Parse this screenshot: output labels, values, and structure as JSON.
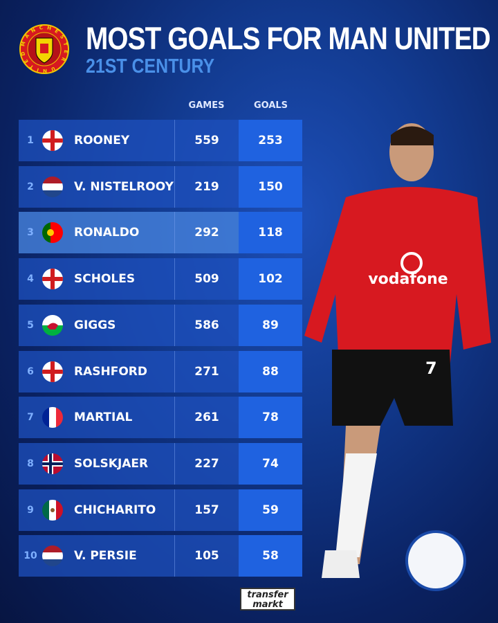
{
  "header": {
    "title": "MOST GOALS FOR MAN UNITED",
    "subtitle": "21ST CENTURY",
    "crest_text": "MANCHESTER UNITED"
  },
  "columns": {
    "games": "GAMES",
    "goals": "GOALS"
  },
  "rows": [
    {
      "rank": "1",
      "flag": "england",
      "name": "ROONEY",
      "games": "559",
      "goals": "253"
    },
    {
      "rank": "2",
      "flag": "netherlands",
      "name": "V. NISTELROOY",
      "games": "219",
      "goals": "150"
    },
    {
      "rank": "3",
      "flag": "portugal",
      "name": "RONALDO",
      "games": "292",
      "goals": "118",
      "highlighted": true
    },
    {
      "rank": "4",
      "flag": "england",
      "name": "SCHOLES",
      "games": "509",
      "goals": "102"
    },
    {
      "rank": "5",
      "flag": "wales",
      "name": "GIGGS",
      "games": "586",
      "goals": "89"
    },
    {
      "rank": "6",
      "flag": "england",
      "name": "RASHFORD",
      "games": "271",
      "goals": "88"
    },
    {
      "rank": "7",
      "flag": "france",
      "name": "MARTIAL",
      "games": "261",
      "goals": "78"
    },
    {
      "rank": "8",
      "flag": "norway",
      "name": "SOLSKJAER",
      "games": "227",
      "goals": "74"
    },
    {
      "rank": "9",
      "flag": "mexico",
      "name": "CHICHARITO",
      "games": "157",
      "goals": "59"
    },
    {
      "rank": "10",
      "flag": "netherlands",
      "name": "V. PERSIE",
      "games": "105",
      "goals": "58"
    }
  ],
  "player_shirt": {
    "sponsor": "vodafone",
    "number": "7"
  },
  "footer": {
    "logo_line1": "transfer",
    "logo_line2": "markt"
  },
  "colors": {
    "goals_column": "#1f62e0",
    "subtitle": "#4a90e8",
    "shirt": "#d71920"
  }
}
